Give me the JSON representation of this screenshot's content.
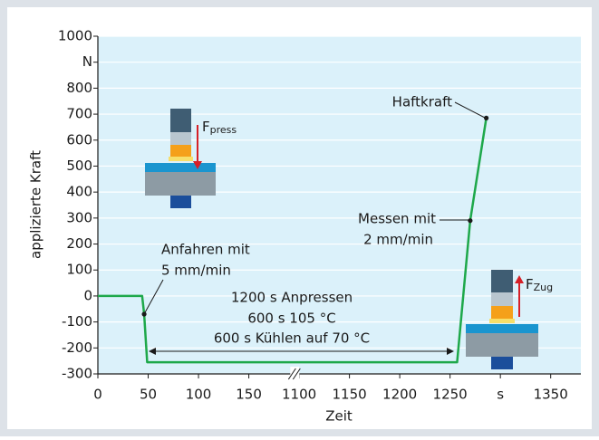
{
  "chart_data": {
    "type": "line",
    "x_label": "Zeit",
    "y_label": "applizierte Kraft",
    "xlim": [
      0,
      1380
    ],
    "xbreak": [
      175,
      1075
    ],
    "xticks": [
      0,
      50,
      100,
      150,
      1100,
      1150,
      1200,
      1250,
      {
        "value": 1300,
        "label": "s"
      },
      1350
    ],
    "ylim": [
      -300,
      1000
    ],
    "yticks": [
      1000,
      {
        "value": 900,
        "label": "N"
      },
      800,
      700,
      600,
      500,
      400,
      300,
      200,
      100,
      0,
      -100,
      -200,
      -300
    ],
    "grid": true,
    "series": [
      {
        "color": "#1ea84a",
        "x": [
          0,
          44,
          46,
          49,
          1257,
          1270,
          1286
        ],
        "values": [
          0,
          0,
          -70,
          -255,
          -255,
          290,
          685
        ]
      }
    ],
    "annotations": {
      "haftkraft": "Haftkraft",
      "messen": [
        "Messen mit",
        "2 mm/min"
      ],
      "anfahren": [
        "Anfahren mit",
        "5 mm/min"
      ],
      "phases": [
        "1200 s Anpressen",
        "600 s 105 °C",
        "600 s Kühlen auf 70 °C"
      ],
      "f_press": {
        "symbol": "F",
        "sub": "press"
      },
      "f_zug": {
        "symbol": "F",
        "sub": "Zug"
      }
    }
  }
}
